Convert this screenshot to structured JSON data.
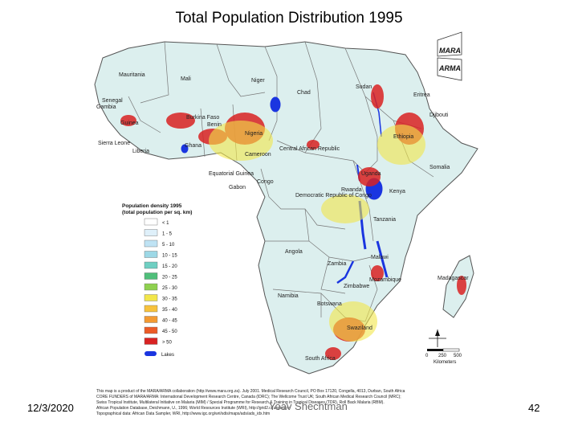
{
  "title": "Total Population Distribution 1995",
  "footer": {
    "date": "12/3/2020",
    "center": "Yoav Shechtman",
    "page": "42"
  },
  "logos": {
    "top": "MARA",
    "bottom": "ARMA"
  },
  "legend": {
    "title_line1": "Population density 1995",
    "title_line2": "(total population per sq. km)",
    "classes": [
      {
        "label": "< 1",
        "color": "#ffffff"
      },
      {
        "label": "1 - 5",
        "color": "#dff0fa"
      },
      {
        "label": "5 - 10",
        "color": "#bfe3f4"
      },
      {
        "label": "10 - 15",
        "color": "#9dd8e6"
      },
      {
        "label": "15 - 20",
        "color": "#6fcfc2"
      },
      {
        "label": "20 - 25",
        "color": "#4fbf7a"
      },
      {
        "label": "25 - 30",
        "color": "#8fd14f"
      },
      {
        "label": "30 - 35",
        "color": "#f2e64a"
      },
      {
        "label": "35 - 40",
        "color": "#f7c23c"
      },
      {
        "label": "40 - 45",
        "color": "#f39a32"
      },
      {
        "label": "45 - 50",
        "color": "#ec5b27"
      },
      {
        "label": "> 50",
        "color": "#d92222"
      }
    ],
    "lakes_label": "Lakes",
    "lakes_color": "#1a35e0"
  },
  "scale": {
    "ticks": [
      "0",
      "250",
      "500"
    ],
    "unit": "Kilometers"
  },
  "countries": [
    "Mauritania",
    "Mali",
    "Niger",
    "Chad",
    "Sudan",
    "Eritrea",
    "Senegal",
    "Gambia",
    "Guinea",
    "Burkina Faso",
    "Benin",
    "Nigeria",
    "Sierra Leone",
    "Liberia",
    "Ghana",
    "Cameroon",
    "Central African Republic",
    "Ethiopia",
    "Djibouti",
    "Somalia",
    "Equatorial Guinea",
    "Gabon",
    "Congo",
    "Democratic Republic of Congo",
    "Rwanda",
    "Uganda",
    "Kenya",
    "Tanzania",
    "Angola",
    "Zambia",
    "Malawi",
    "Mozambique",
    "Zimbabwe",
    "Namibia",
    "Botswana",
    "Swaziland",
    "Madagascar",
    "South Africa"
  ],
  "credits": [
    "This map is a product of the MARA/ARMA collaboration (http://www.mara.org.za). July 2001. Medical Research Council, PO Box 17120, Congella, 4013, Durban, South Africa",
    "CORE FUNDERS of MARA/ARMA: International Development Research Centre, Canada (IDRC); The Wellcome Trust UK; South African Medical Research Council (MRC);",
    "Swiss Tropical Institute, Multilateral Initiative on Malaria (MIM) / Special Programme for Research & Training in Tropical Diseases (TDR), Roll Back Malaria (RBM).",
    "African Population Database, Deichmann, U., 1996; World Resources Institute (WRI), http://grid2.cr.usgs.gov",
    "Topographical data: African Data Sampler, WRI, http://www.igc.org/wri/sdis/maps/ads/ads_idx.htm"
  ]
}
